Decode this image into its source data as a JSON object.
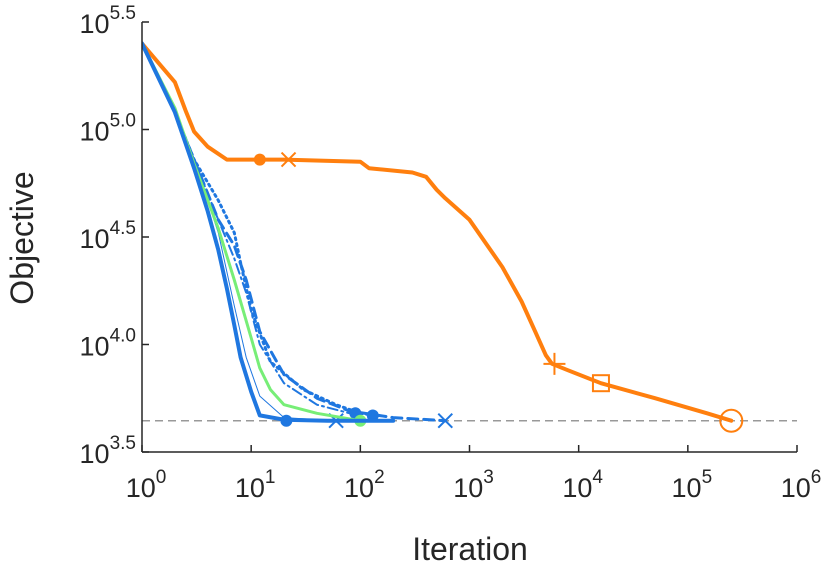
{
  "chart_data": {
    "type": "line",
    "title": "",
    "xlabel": "Iteration",
    "ylabel": "Objective",
    "xscale": "log",
    "yscale": "log",
    "xlim": [
      1,
      1000000
    ],
    "ylim": [
      3162,
      316228
    ],
    "x_ticks": [
      {
        "base": "10",
        "exp": "0",
        "value": 1
      },
      {
        "base": "10",
        "exp": "1",
        "value": 10
      },
      {
        "base": "10",
        "exp": "2",
        "value": 100
      },
      {
        "base": "10",
        "exp": "3",
        "value": 1000
      },
      {
        "base": "10",
        "exp": "4",
        "value": 10000
      },
      {
        "base": "10",
        "exp": "5",
        "value": 100000
      },
      {
        "base": "10",
        "exp": "6",
        "value": 1000000
      }
    ],
    "y_ticks": [
      {
        "base": "10",
        "exp": "3.5",
        "value": 3162
      },
      {
        "base": "10",
        "exp": "4.0",
        "value": 10000
      },
      {
        "base": "10",
        "exp": "4.5",
        "value": 31623
      },
      {
        "base": "10",
        "exp": "5.0",
        "value": 100000
      },
      {
        "base": "10",
        "exp": "5.5",
        "value": 316228
      }
    ],
    "reference_line": {
      "y": 4420,
      "color": "#999999",
      "style": "dashed"
    },
    "series": [
      {
        "color": "#ff7f0e",
        "style": "solid",
        "width": 4,
        "x": [
          1,
          2,
          2.5,
          3,
          4,
          6,
          10,
          20,
          100,
          120,
          300,
          400,
          500,
          600,
          1000,
          2000,
          3000,
          4000,
          5000,
          5700,
          8000,
          16000,
          50000,
          150000,
          250000
        ],
        "y": [
          251189,
          165959,
          123027,
          97724,
          83176,
          72444,
          72444,
          72444,
          70795,
          66069,
          63096,
          60256,
          52481,
          47863,
          38019,
          22909,
          15849,
          11482,
          8913,
          8128,
          7586,
          6607,
          5623,
          4786,
          4420
        ],
        "markers": [
          {
            "x": 12,
            "y": 72444,
            "shape": "dot"
          },
          {
            "x": 22,
            "y": 72444,
            "shape": "x"
          },
          {
            "x": 6000,
            "y": 8128,
            "shape": "plus"
          },
          {
            "x": 16000,
            "y": 6607,
            "shape": "square"
          },
          {
            "x": 250000,
            "y": 4420,
            "shape": "circle"
          }
        ]
      },
      {
        "color": "#1f77e0",
        "style": "dotted",
        "width": 3,
        "x": [
          1,
          2,
          3,
          5,
          7,
          8,
          10,
          15,
          30,
          60,
          100,
          140
        ],
        "y": [
          251189,
          120226,
          72444,
          46774,
          33113,
          23988,
          14454,
          8318,
          6166,
          5248,
          4786,
          4677
        ],
        "markers": [
          {
            "x": 130,
            "y": 4677,
            "shape": "dot"
          }
        ]
      },
      {
        "color": "#1f77e0",
        "style": "dashed",
        "width": 3,
        "x": [
          1,
          2,
          3,
          5,
          7,
          9,
          12,
          20,
          40,
          80,
          200,
          600
        ],
        "y": [
          251189,
          120226,
          72444,
          38019,
          28840,
          19953,
          11482,
          7244,
          5623,
          4898,
          4571,
          4420
        ],
        "markers": [
          {
            "x": 600,
            "y": 4420,
            "shape": "x"
          }
        ]
      },
      {
        "color": "#1f77e0",
        "style": "dashdot",
        "width": 2,
        "x": [
          1,
          2,
          3,
          5,
          7,
          9,
          12,
          20,
          40,
          80,
          100
        ],
        "y": [
          251189,
          120226,
          72444,
          38019,
          25119,
          17378,
          10000,
          6607,
          5248,
          4786,
          4786
        ],
        "markers": [
          {
            "x": 90,
            "y": 4786,
            "shape": "dot"
          }
        ]
      },
      {
        "color": "#1f77e0",
        "style": "solid",
        "width": 1,
        "x": [
          1,
          2,
          3,
          5,
          7,
          9,
          12,
          20,
          60
        ],
        "y": [
          251189,
          120226,
          72444,
          33113,
          15136,
          8710,
          5754,
          4571,
          4420
        ],
        "markers": [
          {
            "x": 60,
            "y": 4420,
            "shape": "x"
          }
        ]
      },
      {
        "color": "#77ee77",
        "style": "solid",
        "width": 3,
        "x": [
          1,
          2,
          3,
          5,
          7,
          10,
          12,
          15,
          20,
          40,
          100
        ],
        "y": [
          251189,
          125893,
          69183,
          34674,
          19953,
          10715,
          7762,
          6166,
          5248,
          4786,
          4420
        ],
        "markers": [
          {
            "x": 100,
            "y": 4420,
            "shape": "dot"
          }
        ]
      },
      {
        "color": "#1f77e0",
        "style": "solid",
        "width": 4,
        "x": [
          1,
          2,
          3,
          4,
          5,
          6,
          7,
          8,
          10,
          12,
          20,
          50,
          200
        ],
        "y": [
          251189,
          120226,
          66069,
          41687,
          27542,
          18197,
          12303,
          8710,
          6026,
          4677,
          4471,
          4420,
          4420
        ],
        "markers": [
          {
            "x": 21,
            "y": 4420,
            "shape": "dot"
          }
        ]
      }
    ]
  }
}
